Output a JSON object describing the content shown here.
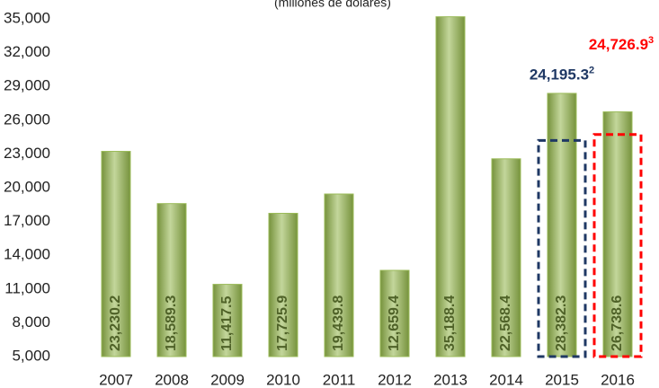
{
  "chart_data": {
    "type": "bar",
    "subtitle": "(millones de dólares)",
    "categories": [
      "2007",
      "2008",
      "2009",
      "2010",
      "2011",
      "2012",
      "2013",
      "2014",
      "2015",
      "2016"
    ],
    "values": [
      23230.2,
      18589.3,
      11417.5,
      17725.9,
      19439.8,
      12659.4,
      35188.4,
      22568.4,
      28382.3,
      26738.6
    ],
    "value_labels": [
      "23,230.2",
      "18,589.3",
      "11,417.5",
      "17,725.9",
      "19,439.8",
      "12,659.4",
      "35,188.4",
      "22,568.4",
      "28,382.3",
      "26,738.6"
    ],
    "color": "#9bbb59",
    "ylim": [
      5000,
      35000
    ],
    "yticks": [
      {
        "value": 5000,
        "label": "5,000"
      },
      {
        "value": 8000,
        "label": "8,000"
      },
      {
        "value": 11000,
        "label": "11,000"
      },
      {
        "value": 14000,
        "label": "14,000"
      },
      {
        "value": 17000,
        "label": "17,000"
      },
      {
        "value": 20000,
        "label": "20,000"
      },
      {
        "value": 23000,
        "label": "23,000"
      },
      {
        "value": 26000,
        "label": "26,000"
      },
      {
        "value": 29000,
        "label": "29,000"
      },
      {
        "value": 32000,
        "label": "32,000"
      },
      {
        "value": 35000,
        "label": "35,000"
      }
    ],
    "annotations": [
      {
        "category": "2015",
        "value": 24195.3,
        "label": "24,195.3",
        "sup": "2",
        "color": "#1f3864"
      },
      {
        "category": "2016",
        "value": 24726.9,
        "label": "24,726.9",
        "sup": "3",
        "color": "#ff0000"
      }
    ]
  }
}
